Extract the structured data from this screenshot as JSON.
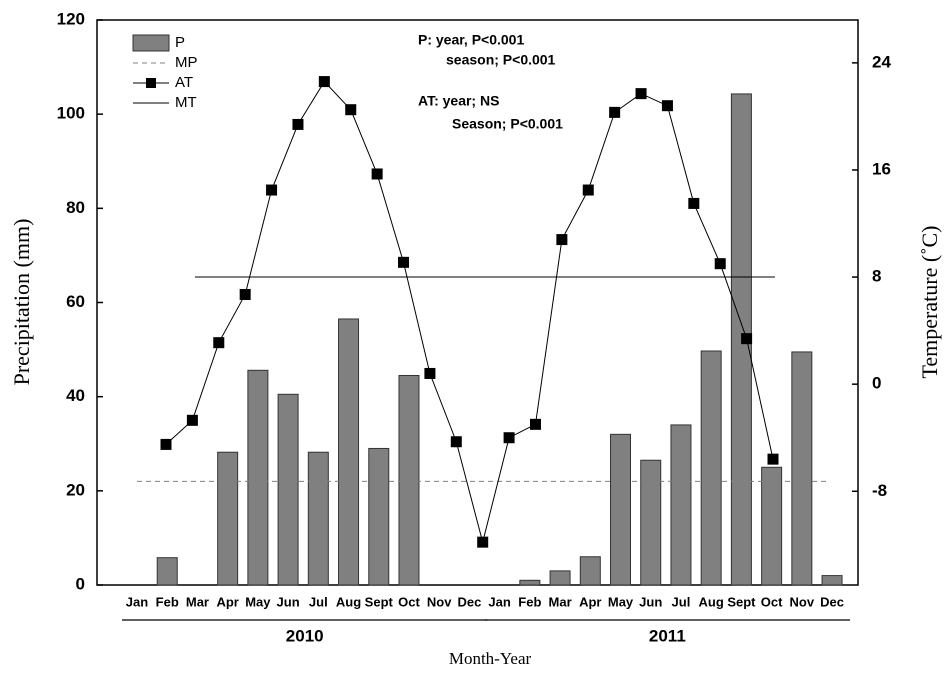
{
  "chart_data": {
    "type": "bar",
    "categories": [
      "Jan",
      "Feb",
      "Mar",
      "Apr",
      "May",
      "Jun",
      "Jul",
      "Aug",
      "Sept",
      "Oct",
      "Nov",
      "Dec",
      "Jan",
      "Feb",
      "Mar",
      "Apr",
      "May",
      "Jun",
      "Jul",
      "Aug",
      "Sept",
      "Oct",
      "Nov",
      "Dec"
    ],
    "groups": [
      {
        "label": "2010",
        "from": 0,
        "to": 11
      },
      {
        "label": "2011",
        "from": 12,
        "to": 23
      }
    ],
    "series": [
      {
        "name": "P",
        "type": "bar",
        "color": "#808080",
        "values": [
          0,
          5.8,
          0,
          28.2,
          45.6,
          40.5,
          28.2,
          56.5,
          29,
          44.5,
          0,
          0,
          0,
          1,
          3,
          6,
          32,
          26.5,
          34,
          49.7,
          104.3,
          25,
          49.5,
          2
        ]
      },
      {
        "name": "MP",
        "type": "hline",
        "color": "#808080",
        "value": 22
      },
      {
        "name": "AT",
        "type": "line",
        "axis": "y2",
        "color": "#000000",
        "values": [
          -4.5,
          -2.7,
          3.1,
          6.7,
          14.5,
          19.4,
          22.6,
          20.5,
          15.7,
          9.1,
          0.8,
          -4.3,
          -11.8,
          -4.0,
          -3.0,
          10.8,
          14.5,
          20.3,
          21.7,
          20.8,
          13.5,
          9.0,
          3.4,
          -5.6
        ]
      },
      {
        "name": "MT",
        "type": "hline",
        "axis": "y2",
        "color": "#000000",
        "value": 8
      }
    ],
    "ylim": [
      0,
      120
    ],
    "yticks": [
      0,
      20,
      40,
      60,
      80,
      100,
      120
    ],
    "y2lim": [
      -15,
      27.2
    ],
    "y2ticks": [
      -8,
      0,
      8,
      16,
      24
    ],
    "ylabel": "Precipitation  (mm)",
    "y2label": "Temperature  (˚C)",
    "xlabel": "Month-Year",
    "annotations": [
      "P:  year,      P<0.001",
      "season; P<0.001",
      "AT: year; NS",
      "Season; P<0.001"
    ],
    "legend": "upper left"
  }
}
